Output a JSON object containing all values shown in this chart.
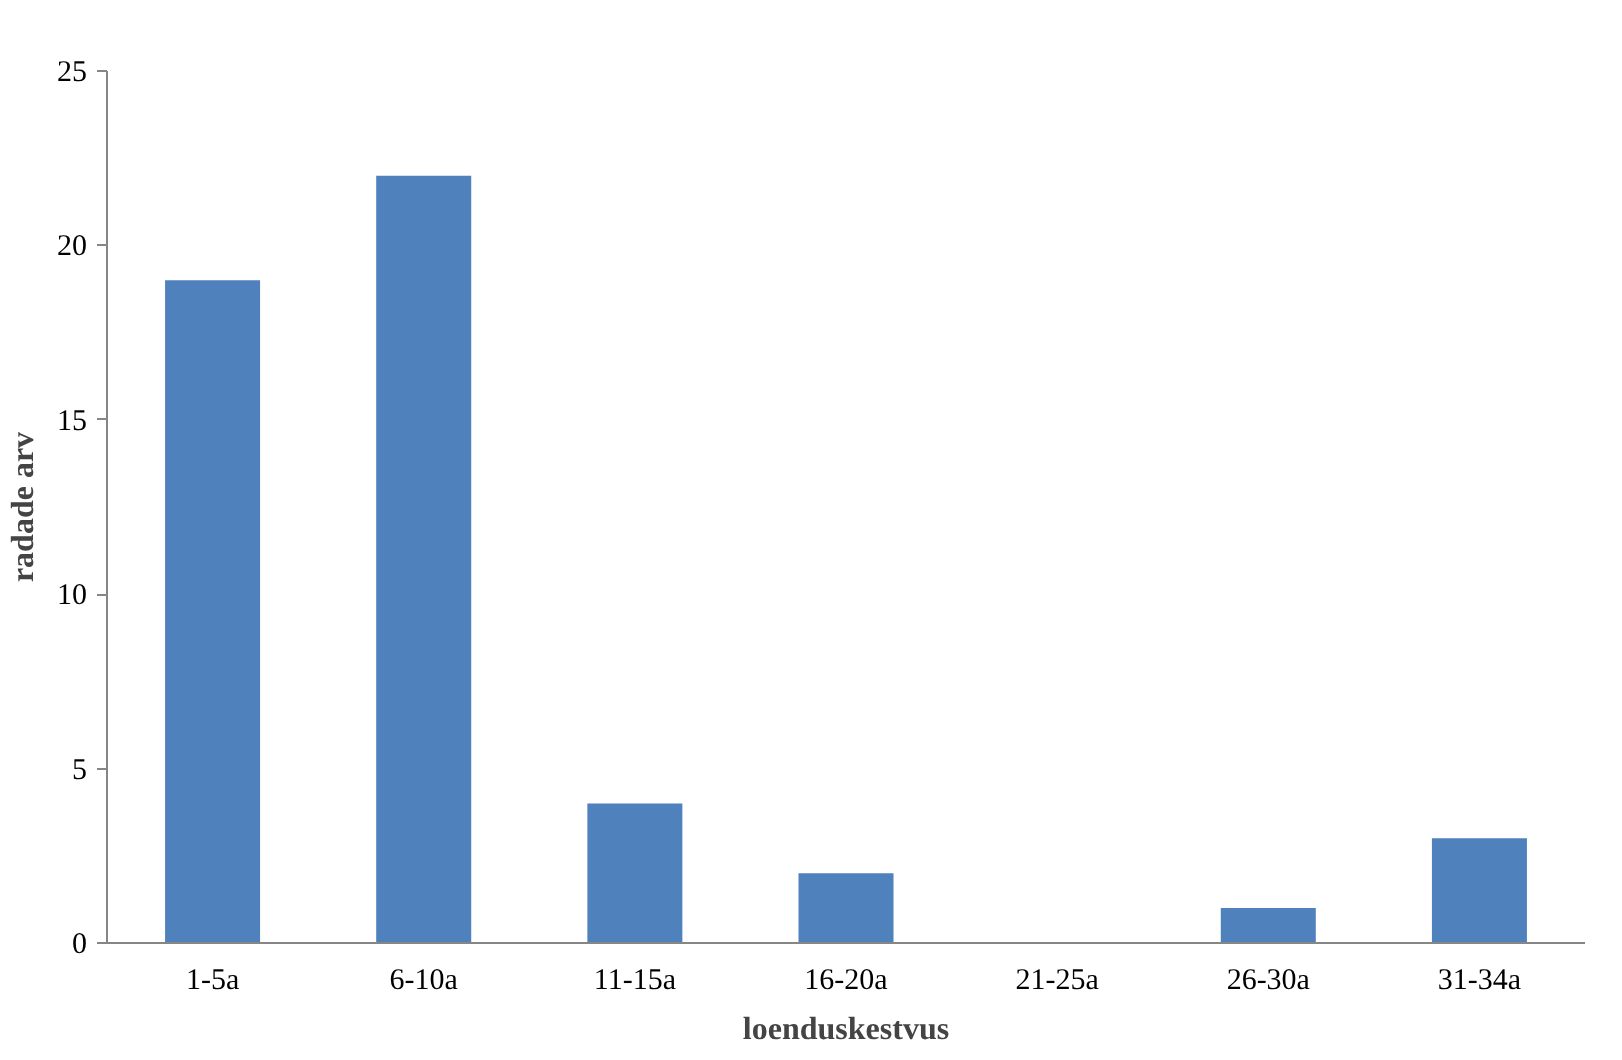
{
  "chart_data": {
    "type": "bar",
    "xlabel": "loenduskestvus",
    "ylabel": "radade arv",
    "categories": [
      "1-5a",
      "6-10a",
      "11-15a",
      "16-20a",
      "21-25a",
      "26-30a",
      "31-34a"
    ],
    "values": [
      19,
      22,
      4,
      2,
      0,
      1,
      3
    ],
    "color": "#4f81bd",
    "ylim": [
      0,
      25
    ],
    "yticks": [
      0,
      5,
      10,
      15,
      20,
      25
    ],
    "grid": false
  }
}
